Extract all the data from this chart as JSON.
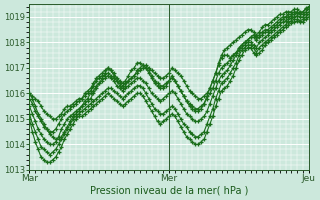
{
  "xlabel": "Pression niveau de la mer( hPa )",
  "bg_color": "#cce8dc",
  "grid_color": "#ffffff",
  "line_color": "#1a6e1a",
  "ylim": [
    1013,
    1019.5
  ],
  "yticks": [
    1013,
    1014,
    1015,
    1016,
    1017,
    1018,
    1019
  ],
  "day_labels": [
    "Mar",
    "Mer",
    "Jeu"
  ],
  "day_positions": [
    0,
    48,
    96
  ],
  "total_points": 97,
  "series": [
    [
      1016.0,
      1015.9,
      1015.8,
      1015.7,
      1015.5,
      1015.3,
      1015.2,
      1015.1,
      1015.0,
      1015.0,
      1015.1,
      1015.2,
      1015.4,
      1015.5,
      1015.5,
      1015.6,
      1015.7,
      1015.8,
      1015.8,
      1015.9,
      1016.0,
      1016.1,
      1016.3,
      1016.5,
      1016.6,
      1016.7,
      1016.7,
      1016.8,
      1016.7,
      1016.6,
      1016.5,
      1016.4,
      1016.3,
      1016.4,
      1016.5,
      1016.6,
      1016.7,
      1016.8,
      1016.9,
      1017.0,
      1017.1,
      1017.0,
      1016.9,
      1016.8,
      1016.7,
      1016.6,
      1016.6,
      1016.7,
      1016.8,
      1017.0,
      1016.9,
      1016.8,
      1016.7,
      1016.5,
      1016.3,
      1016.1,
      1016.0,
      1015.9,
      1015.8,
      1015.8,
      1015.9,
      1016.0,
      1016.2,
      1016.5,
      1016.8,
      1017.1,
      1017.4,
      1017.5,
      1017.5,
      1017.4,
      1017.5,
      1017.6,
      1017.8,
      1017.9,
      1018.0,
      1018.1,
      1018.2,
      1018.3,
      1018.2,
      1018.3,
      1018.4,
      1018.5,
      1018.5,
      1018.6,
      1018.7,
      1018.8,
      1018.9,
      1019.0,
      1019.0,
      1019.1,
      1019.1,
      1019.2,
      1019.2,
      1019.1,
      1019.2,
      1019.3,
      1019.4
    ],
    [
      1015.8,
      1015.6,
      1015.3,
      1015.1,
      1014.9,
      1014.7,
      1014.6,
      1014.5,
      1014.5,
      1014.6,
      1014.8,
      1015.0,
      1015.2,
      1015.3,
      1015.4,
      1015.5,
      1015.6,
      1015.7,
      1015.8,
      1016.0,
      1016.1,
      1016.2,
      1016.4,
      1016.6,
      1016.7,
      1016.8,
      1016.9,
      1017.0,
      1016.9,
      1016.7,
      1016.5,
      1016.3,
      1016.2,
      1016.3,
      1016.5,
      1016.6,
      1016.7,
      1016.9,
      1017.0,
      1017.1,
      1017.0,
      1016.9,
      1016.7,
      1016.5,
      1016.4,
      1016.3,
      1016.3,
      1016.4,
      1016.5,
      1016.6,
      1016.5,
      1016.3,
      1016.1,
      1015.9,
      1015.7,
      1015.6,
      1015.5,
      1015.4,
      1015.4,
      1015.5,
      1015.6,
      1015.8,
      1016.0,
      1016.2,
      1016.5,
      1016.8,
      1017.0,
      1017.1,
      1017.2,
      1017.3,
      1017.5,
      1017.6,
      1017.7,
      1017.9,
      1018.0,
      1018.1,
      1018.2,
      1018.2,
      1018.1,
      1018.2,
      1018.3,
      1018.4,
      1018.4,
      1018.5,
      1018.6,
      1018.7,
      1018.8,
      1018.9,
      1019.0,
      1019.0,
      1019.05,
      1019.1,
      1019.15,
      1019.1,
      1019.1,
      1019.2,
      1019.3
    ],
    [
      1015.5,
      1015.2,
      1014.9,
      1014.6,
      1014.4,
      1014.2,
      1014.1,
      1014.0,
      1014.0,
      1014.1,
      1014.3,
      1014.6,
      1014.8,
      1015.0,
      1015.1,
      1015.2,
      1015.3,
      1015.4,
      1015.5,
      1015.7,
      1015.8,
      1016.0,
      1016.1,
      1016.3,
      1016.4,
      1016.5,
      1016.6,
      1016.7,
      1016.6,
      1016.5,
      1016.3,
      1016.2,
      1016.1,
      1016.2,
      1016.3,
      1016.4,
      1016.5,
      1016.6,
      1016.6,
      1016.5,
      1016.4,
      1016.2,
      1016.0,
      1015.9,
      1015.8,
      1015.7,
      1015.8,
      1015.9,
      1016.0,
      1016.1,
      1016.0,
      1015.8,
      1015.6,
      1015.4,
      1015.2,
      1015.1,
      1015.0,
      1014.9,
      1014.9,
      1015.0,
      1015.1,
      1015.3,
      1015.6,
      1015.9,
      1016.2,
      1016.5,
      1016.7,
      1016.8,
      1016.9,
      1017.1,
      1017.3,
      1017.5,
      1017.7,
      1017.8,
      1017.9,
      1018.0,
      1018.0,
      1017.9,
      1017.8,
      1018.0,
      1018.1,
      1018.2,
      1018.3,
      1018.4,
      1018.5,
      1018.6,
      1018.7,
      1018.8,
      1018.85,
      1018.9,
      1018.95,
      1019.0,
      1019.05,
      1019.0,
      1019.0,
      1019.1,
      1019.2
    ],
    [
      1015.2,
      1014.8,
      1014.5,
      1014.2,
      1013.9,
      1013.8,
      1013.7,
      1013.6,
      1013.7,
      1013.8,
      1014.0,
      1014.2,
      1014.4,
      1014.6,
      1014.8,
      1015.0,
      1015.1,
      1015.2,
      1015.3,
      1015.4,
      1015.5,
      1015.6,
      1015.7,
      1015.8,
      1015.9,
      1016.0,
      1016.1,
      1016.2,
      1016.2,
      1016.1,
      1016.0,
      1015.9,
      1015.8,
      1015.9,
      1016.0,
      1016.1,
      1016.2,
      1016.3,
      1016.3,
      1016.2,
      1016.0,
      1015.8,
      1015.6,
      1015.4,
      1015.3,
      1015.2,
      1015.2,
      1015.3,
      1015.4,
      1015.5,
      1015.4,
      1015.2,
      1015.0,
      1014.8,
      1014.7,
      1014.5,
      1014.4,
      1014.3,
      1014.3,
      1014.4,
      1014.5,
      1014.8,
      1015.1,
      1015.4,
      1015.8,
      1016.1,
      1016.4,
      1016.5,
      1016.6,
      1016.8,
      1017.0,
      1017.2,
      1017.5,
      1017.7,
      1017.8,
      1017.9,
      1017.9,
      1017.8,
      1017.6,
      1017.8,
      1017.9,
      1018.0,
      1018.1,
      1018.2,
      1018.3,
      1018.4,
      1018.5,
      1018.6,
      1018.7,
      1018.8,
      1018.85,
      1018.9,
      1018.9,
      1018.85,
      1018.9,
      1019.0,
      1019.1
    ],
    [
      1015.0,
      1014.5,
      1014.1,
      1013.8,
      1013.5,
      1013.4,
      1013.3,
      1013.3,
      1013.4,
      1013.5,
      1013.7,
      1013.9,
      1014.2,
      1014.4,
      1014.6,
      1014.8,
      1015.0,
      1015.1,
      1015.1,
      1015.2,
      1015.3,
      1015.4,
      1015.5,
      1015.6,
      1015.7,
      1015.8,
      1015.9,
      1016.0,
      1015.9,
      1015.8,
      1015.7,
      1015.6,
      1015.5,
      1015.6,
      1015.7,
      1015.8,
      1015.9,
      1016.0,
      1016.0,
      1015.9,
      1015.7,
      1015.5,
      1015.3,
      1015.1,
      1014.9,
      1014.8,
      1014.9,
      1015.0,
      1015.1,
      1015.2,
      1015.1,
      1014.9,
      1014.7,
      1014.5,
      1014.3,
      1014.2,
      1014.1,
      1014.0,
      1014.0,
      1014.1,
      1014.2,
      1014.5,
      1014.8,
      1015.1,
      1015.5,
      1015.8,
      1016.1,
      1016.2,
      1016.3,
      1016.5,
      1016.7,
      1017.0,
      1017.3,
      1017.5,
      1017.7,
      1017.8,
      1017.8,
      1017.6,
      1017.5,
      1017.6,
      1017.7,
      1017.9,
      1018.0,
      1018.1,
      1018.2,
      1018.3,
      1018.4,
      1018.5,
      1018.6,
      1018.7,
      1018.75,
      1018.8,
      1018.85,
      1018.8,
      1018.8,
      1018.9,
      1019.0
    ],
    [
      1016.0,
      1015.8,
      1015.5,
      1015.2,
      1015.0,
      1014.8,
      1014.6,
      1014.4,
      1014.3,
      1014.2,
      1014.2,
      1014.3,
      1014.5,
      1014.7,
      1014.9,
      1015.1,
      1015.2,
      1015.3,
      1015.5,
      1015.6,
      1015.7,
      1015.8,
      1016.0,
      1016.2,
      1016.4,
      1016.6,
      1016.8,
      1017.0,
      1016.9,
      1016.8,
      1016.6,
      1016.5,
      1016.4,
      1016.5,
      1016.7,
      1016.9,
      1017.0,
      1017.2,
      1017.2,
      1017.1,
      1017.0,
      1016.8,
      1016.6,
      1016.4,
      1016.3,
      1016.2,
      1016.2,
      1016.3,
      1016.5,
      1016.7,
      1016.5,
      1016.3,
      1016.1,
      1015.9,
      1015.7,
      1015.5,
      1015.4,
      1015.3,
      1015.3,
      1015.4,
      1015.6,
      1015.9,
      1016.2,
      1016.5,
      1016.8,
      1017.2,
      1017.5,
      1017.7,
      1017.8,
      1017.9,
      1018.0,
      1018.1,
      1018.2,
      1018.3,
      1018.4,
      1018.5,
      1018.5,
      1018.4,
      1018.3,
      1018.4,
      1018.6,
      1018.7,
      1018.7,
      1018.8,
      1018.9,
      1019.0,
      1019.1,
      1019.1,
      1019.2,
      1019.2,
      1019.2,
      1019.3,
      1019.3,
      1019.2,
      1019.2,
      1019.35,
      1019.4
    ]
  ]
}
